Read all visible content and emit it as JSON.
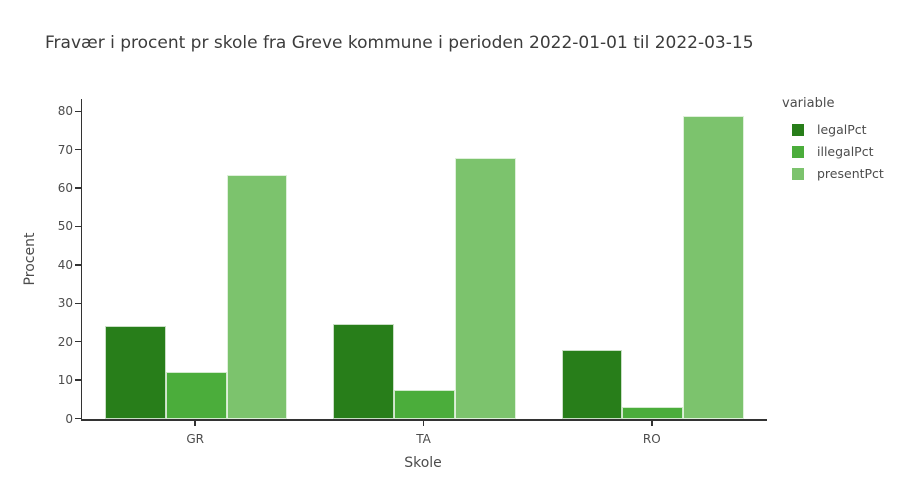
{
  "chart_data": {
    "type": "bar",
    "barmode": "group",
    "title": "Fravær i procent pr skole fra Greve kommune i perioden 2022-01-01 til 2022-03-15",
    "xlabel": "Skole",
    "ylabel": "Procent",
    "categories": [
      "GR",
      "TA",
      "RO"
    ],
    "series": [
      {
        "name": "legalPct",
        "color": "#287e1a",
        "values": [
          24.0,
          24.5,
          17.8
        ]
      },
      {
        "name": "illegalPct",
        "color": "#4bad3b",
        "values": [
          12.0,
          7.3,
          3.0
        ]
      },
      {
        "name": "presentPct",
        "color": "#7cc36d",
        "values": [
          63.5,
          67.8,
          78.8
        ]
      }
    ],
    "ylim": [
      0,
      83.2
    ],
    "yticks": [
      0,
      10,
      20,
      30,
      40,
      50,
      60,
      70,
      80
    ],
    "legend_title": "variable",
    "legend_position": "right",
    "grid": false,
    "background": "#ffffff",
    "axis_color": "#333333",
    "text_color": "#4c4c4c"
  }
}
